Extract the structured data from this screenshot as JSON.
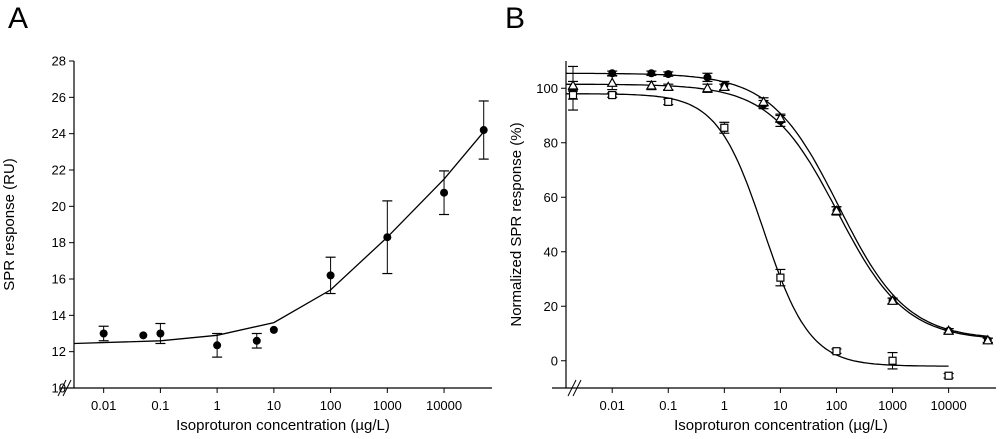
{
  "chart_data": [
    {
      "panel": "A",
      "type": "scatter",
      "xlabel": "Isoproturon concentration (µg/L)",
      "ylabel": "SPR response (RU)",
      "x_scale": "log",
      "xlim": [
        0.003,
        70000
      ],
      "ylim": [
        10,
        28
      ],
      "x_ticks": [
        0.01,
        0.1,
        1,
        10,
        100,
        1000,
        10000
      ],
      "x_tick_labels": [
        "0.01",
        "0.1",
        "1",
        "10",
        "100",
        "1000",
        "10000"
      ],
      "y_ticks": [
        10,
        12,
        14,
        16,
        18,
        20,
        22,
        24,
        26,
        28
      ],
      "y_tick_labels": [
        "10",
        "12",
        "14",
        "16",
        "18",
        "20",
        "22",
        "24",
        "26",
        "28"
      ],
      "axis_break": true,
      "series": [
        {
          "name": "Isoproturon",
          "marker": "filled-circle",
          "points": [
            {
              "x": 0.01,
              "y": 13.0,
              "err": 0.4
            },
            {
              "x": 0.05,
              "y": 12.9,
              "err": 0.0
            },
            {
              "x": 0.1,
              "y": 13.0,
              "err": 0.55
            },
            {
              "x": 1,
              "y": 12.35,
              "err": 0.65
            },
            {
              "x": 5,
              "y": 12.6,
              "err": 0.4
            },
            {
              "x": 10,
              "y": 13.2,
              "err": 0.0
            },
            {
              "x": 100,
              "y": 16.2,
              "err": 1.0
            },
            {
              "x": 1000,
              "y": 18.3,
              "err": 2.0
            },
            {
              "x": 10000,
              "y": 20.75,
              "err": 1.2
            },
            {
              "x": 50000,
              "y": 24.2,
              "err": 1.6
            }
          ],
          "fit": [
            {
              "x": 0.003,
              "y": 12.45
            },
            {
              "x": 0.1,
              "y": 12.6
            },
            {
              "x": 1,
              "y": 12.9
            },
            {
              "x": 10,
              "y": 13.6
            },
            {
              "x": 100,
              "y": 15.4
            },
            {
              "x": 1000,
              "y": 18.3
            },
            {
              "x": 10000,
              "y": 21.5
            },
            {
              "x": 50000,
              "y": 24.1
            }
          ]
        }
      ]
    },
    {
      "panel": "B",
      "type": "scatter",
      "xlabel": "Isoproturon concentration (µg/L)",
      "ylabel": "Normalized SPR response (%)",
      "x_scale": "log",
      "xlim": [
        0.0015,
        70000
      ],
      "ylim": [
        -10,
        110
      ],
      "x_ticks": [
        0.01,
        0.1,
        1,
        10,
        100,
        1000,
        10000
      ],
      "x_tick_labels": [
        "0.01",
        "0.1",
        "1",
        "10",
        "100",
        "1000",
        "10000"
      ],
      "y_ticks": [
        0,
        20,
        40,
        60,
        80,
        100
      ],
      "y_tick_labels": [
        "0",
        "20",
        "40",
        "60",
        "80",
        "100"
      ],
      "axis_break": true,
      "series": [
        {
          "name": "filled circles",
          "marker": "filled-circle",
          "points": [
            {
              "x": 0.002,
              "y": 100,
              "err": 8
            },
            {
              "x": 0.01,
              "y": 105.5,
              "err": 0.8
            },
            {
              "x": 0.05,
              "y": 105.5,
              "err": 0.8
            },
            {
              "x": 0.1,
              "y": 105.2,
              "err": 0.8
            },
            {
              "x": 0.5,
              "y": 104,
              "err": 1.5
            },
            {
              "x": 1,
              "y": 101,
              "err": 1.5
            },
            {
              "x": 5,
              "y": 94,
              "err": 1.5
            },
            {
              "x": 10,
              "y": 88,
              "err": 2
            },
            {
              "x": 100,
              "y": 55,
              "err": 1.5
            },
            {
              "x": 1000,
              "y": 22,
              "err": 1
            },
            {
              "x": 10000,
              "y": 11,
              "err": 0.8
            },
            {
              "x": 50000,
              "y": 7.5,
              "err": 0.8
            }
          ],
          "fit": {
            "top": 105.5,
            "bottom": 7.8,
            "ic50": 110,
            "hill": 0.72
          }
        },
        {
          "name": "open triangles",
          "marker": "open-triangle",
          "points": [
            {
              "x": 0.002,
              "y": 101,
              "err": 1.5
            },
            {
              "x": 0.01,
              "y": 102,
              "err": 2.5
            },
            {
              "x": 0.05,
              "y": 101,
              "err": 1.5
            },
            {
              "x": 0.1,
              "y": 100.5,
              "err": 1
            },
            {
              "x": 0.5,
              "y": 100,
              "err": 1.5
            },
            {
              "x": 1,
              "y": 100.5,
              "err": 1
            },
            {
              "x": 5,
              "y": 95,
              "err": 1.5
            },
            {
              "x": 10,
              "y": 89,
              "err": 1.5
            },
            {
              "x": 100,
              "y": 55,
              "err": 1.5
            },
            {
              "x": 1000,
              "y": 22,
              "err": 1
            },
            {
              "x": 10000,
              "y": 11,
              "err": 0.8
            },
            {
              "x": 50000,
              "y": 7.5,
              "err": 0.8
            }
          ],
          "fit": {
            "top": 101.5,
            "bottom": 7.5,
            "ic50": 105,
            "hill": 0.72
          }
        },
        {
          "name": "open squares",
          "marker": "open-square",
          "points": [
            {
              "x": 0.002,
              "y": 97.5,
              "err": 1.5
            },
            {
              "x": 0.01,
              "y": 97.5,
              "err": 0.8
            },
            {
              "x": 0.1,
              "y": 95,
              "err": 1
            },
            {
              "x": 1,
              "y": 85.5,
              "err": 2
            },
            {
              "x": 10,
              "y": 30.5,
              "err": 3
            },
            {
              "x": 100,
              "y": 3.5,
              "err": 0.8
            },
            {
              "x": 1000,
              "y": 0,
              "err": 3
            },
            {
              "x": 10000,
              "y": -5.5,
              "err": 0.8
            }
          ],
          "fit": {
            "top": 98,
            "bottom": -2,
            "ic50": 5,
            "hill": 1.05,
            "x_end": 10000
          }
        }
      ]
    }
  ],
  "panel_labels": [
    "A",
    "B"
  ]
}
